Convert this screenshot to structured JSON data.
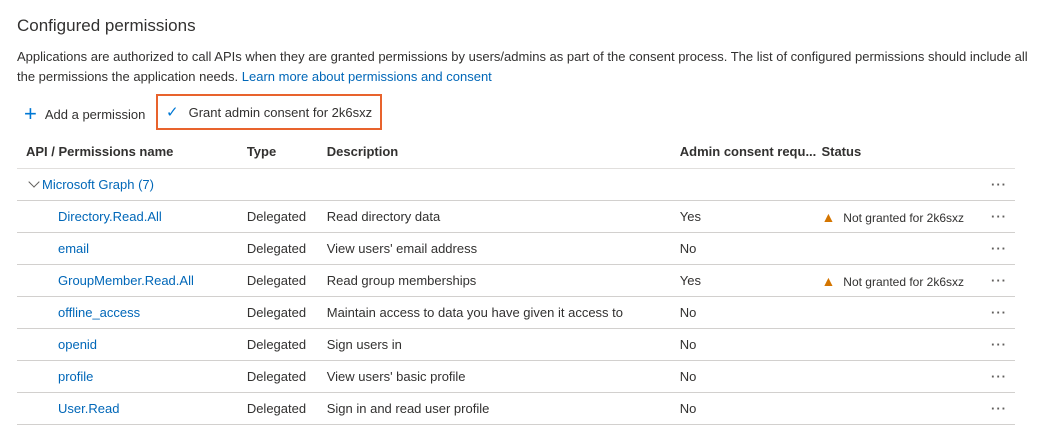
{
  "title": "Configured permissions",
  "intro": {
    "text": "Applications are authorized to call APIs when they are granted permissions by users/admins as part of the consent process. The list of configured permissions should include all the permissions the application needs. ",
    "link": "Learn more about permissions and consent"
  },
  "toolbar": {
    "add_label": "Add a permission",
    "grant_label": "Grant admin consent for 2k6sxz"
  },
  "table": {
    "headers": [
      "API / Permissions name",
      "Type",
      "Description",
      "Admin consent requ...",
      "Status"
    ],
    "group": "Microsoft Graph (7)",
    "rows": [
      {
        "name": "Directory.Read.All",
        "type": "Delegated",
        "description": "Read directory data",
        "admin": "Yes",
        "status": "Not granted for 2k6sxz"
      },
      {
        "name": "email",
        "type": "Delegated",
        "description": "View users' email address",
        "admin": "No",
        "status": ""
      },
      {
        "name": "GroupMember.Read.All",
        "type": "Delegated",
        "description": "Read group memberships",
        "admin": "Yes",
        "status": "Not granted for 2k6sxz"
      },
      {
        "name": "offline_access",
        "type": "Delegated",
        "description": "Maintain access to data you have given it access to",
        "admin": "No",
        "status": ""
      },
      {
        "name": "openid",
        "type": "Delegated",
        "description": "Sign users in",
        "admin": "No",
        "status": ""
      },
      {
        "name": "profile",
        "type": "Delegated",
        "description": "View users' basic profile",
        "admin": "No",
        "status": ""
      },
      {
        "name": "User.Read",
        "type": "Delegated",
        "description": "Sign in and read user profile",
        "admin": "No",
        "status": ""
      }
    ]
  },
  "colors": {
    "link": "#0067b8",
    "highlight": "#e8632d",
    "warning": "#d47500"
  }
}
